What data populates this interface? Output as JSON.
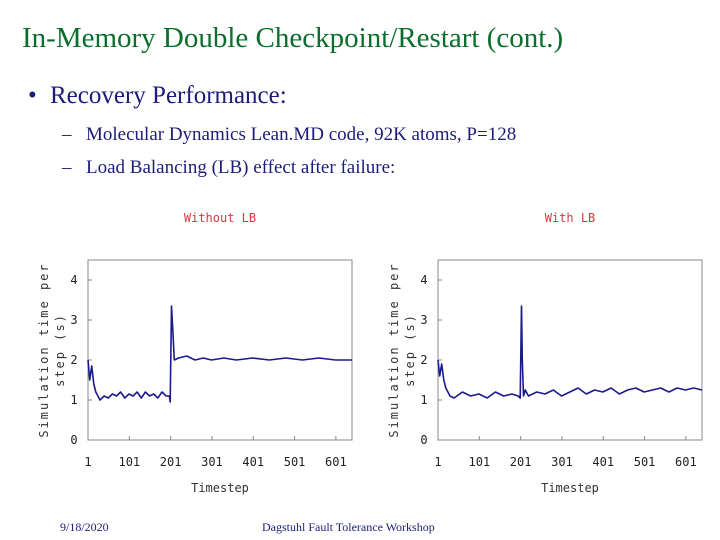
{
  "slide": {
    "title": "In-Memory Double Checkpoint/Restart (cont.)",
    "bullet": "Recovery Performance:",
    "bullet_marker": "•",
    "sub_marker": "–",
    "subbullets": [
      "Molecular Dynamics Lean.MD code, 92K atoms, P=128",
      "Load Balancing (LB) effect after failure:"
    ]
  },
  "footer": {
    "date": "9/18/2020",
    "event": "Dagstuhl Fault Tolerance Workshop"
  },
  "chart_data": [
    {
      "type": "line",
      "title": "Without LB",
      "xlabel": "Timestep",
      "ylabel": "Simulation time per step (s)",
      "xlim": [
        1,
        640
      ],
      "ylim": [
        0,
        4.5
      ],
      "xticks": [
        1,
        101,
        201,
        301,
        401,
        501,
        601
      ],
      "yticks": [
        0,
        1,
        2,
        3,
        4
      ],
      "grid": false,
      "color": "#1a1a8c",
      "series": [
        {
          "x": [
            1,
            5,
            10,
            15,
            20,
            30,
            40,
            50,
            60,
            70,
            80,
            90,
            100,
            110,
            120,
            130,
            140,
            150,
            160,
            170,
            180,
            190,
            198,
            200,
            203,
            206,
            210,
            220,
            240,
            260,
            280,
            300,
            330,
            360,
            400,
            440,
            480,
            520,
            560,
            600,
            640
          ],
          "y": [
            2.0,
            1.5,
            1.85,
            1.4,
            1.2,
            1.0,
            1.1,
            1.05,
            1.15,
            1.1,
            1.2,
            1.05,
            1.15,
            1.1,
            1.2,
            1.05,
            1.2,
            1.1,
            1.15,
            1.05,
            1.2,
            1.1,
            1.1,
            0.95,
            3.35,
            2.8,
            2.0,
            2.05,
            2.1,
            2.0,
            2.05,
            2.0,
            2.05,
            2.0,
            2.05,
            2.0,
            2.05,
            2.0,
            2.05,
            2.0,
            2.0
          ]
        }
      ]
    },
    {
      "type": "line",
      "title": "With LB",
      "xlabel": "Timestep",
      "ylabel": "Simulation time per step (s)",
      "xlim": [
        1,
        640
      ],
      "ylim": [
        0,
        4.5
      ],
      "xticks": [
        1,
        101,
        201,
        301,
        401,
        501,
        601
      ],
      "yticks": [
        0,
        1,
        2,
        3,
        4
      ],
      "grid": false,
      "color": "#1a1a8c",
      "series": [
        {
          "x": [
            1,
            5,
            10,
            15,
            20,
            30,
            40,
            60,
            80,
            100,
            120,
            140,
            160,
            180,
            195,
            200,
            203,
            205,
            208,
            212,
            220,
            240,
            260,
            280,
            300,
            320,
            340,
            360,
            380,
            400,
            420,
            440,
            460,
            480,
            500,
            520,
            540,
            560,
            580,
            600,
            620,
            640
          ],
          "y": [
            2.0,
            1.6,
            1.9,
            1.5,
            1.3,
            1.1,
            1.05,
            1.2,
            1.1,
            1.15,
            1.05,
            1.2,
            1.1,
            1.15,
            1.1,
            1.05,
            3.35,
            2.0,
            1.1,
            1.25,
            1.1,
            1.2,
            1.15,
            1.25,
            1.1,
            1.2,
            1.3,
            1.15,
            1.25,
            1.2,
            1.3,
            1.15,
            1.25,
            1.3,
            1.2,
            1.25,
            1.3,
            1.2,
            1.3,
            1.25,
            1.3,
            1.25
          ]
        }
      ]
    }
  ]
}
